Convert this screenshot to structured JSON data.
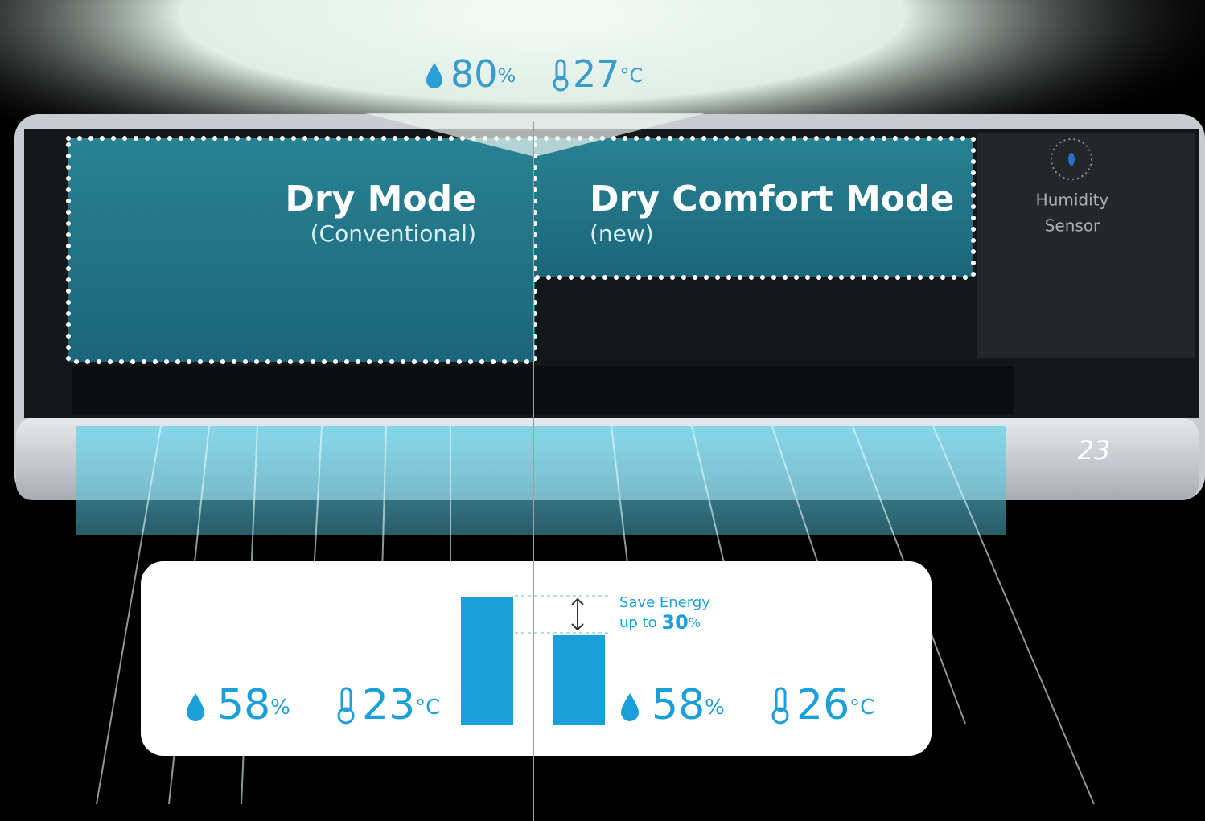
{
  "top_reading": {
    "humidity": 80,
    "humidity_unit": "%",
    "temperature": 27,
    "temperature_unit": "°C"
  },
  "modes": [
    {
      "title": "Dry Mode",
      "subtitle": "(Conventional)",
      "humidity": 58,
      "humidity_unit": "%",
      "temperature": 23,
      "temperature_unit": "°C"
    },
    {
      "title": "Dry Comfort Mode",
      "subtitle": "(new)",
      "humidity": 58,
      "humidity_unit": "%",
      "temperature": 26,
      "temperature_unit": "°C"
    }
  ],
  "sensor_label": [
    "Humidity",
    "Sensor"
  ],
  "display": "23",
  "energy_note": {
    "line1": "Save Energy",
    "line2": "up to",
    "percent": 30,
    "unit": "%"
  },
  "energy_bars": [
    100,
    70
  ]
}
